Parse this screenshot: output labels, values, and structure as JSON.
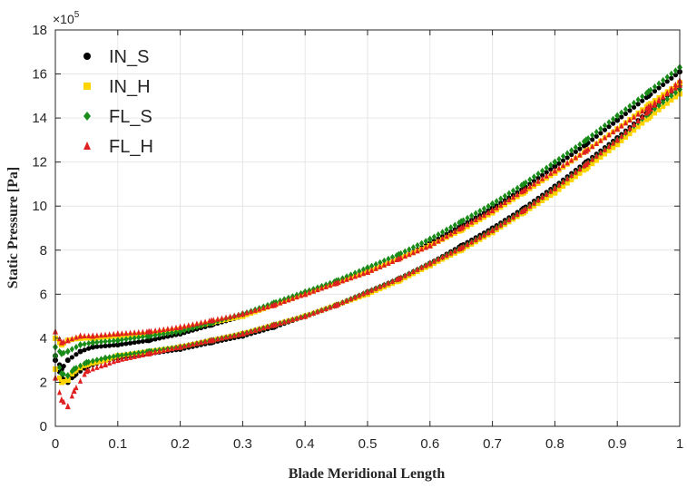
{
  "chart_data": {
    "type": "scatter",
    "title": "",
    "xlabel": "Blade Meridional Length",
    "ylabel": "Static Pressure [Pa]",
    "y_exponent_label": "×10",
    "y_exponent_power": "5",
    "xlim": [
      0,
      1
    ],
    "ylim": [
      0,
      18
    ],
    "y_scale_factor": 100000,
    "x_ticks": [
      0,
      0.1,
      0.2,
      0.3,
      0.4,
      0.5,
      0.6,
      0.7,
      0.8,
      0.9,
      1
    ],
    "x_tick_labels": [
      "0",
      "0.1",
      "0.2",
      "0.3",
      "0.4",
      "0.5",
      "0.6",
      "0.7",
      "0.8",
      "0.9",
      "1"
    ],
    "y_ticks": [
      0,
      2,
      4,
      6,
      8,
      10,
      12,
      14,
      16,
      18
    ],
    "y_tick_labels": [
      "0",
      "2",
      "4",
      "6",
      "8",
      "10",
      "12",
      "14",
      "16",
      "18"
    ],
    "grid": true,
    "legend_position": "top-left",
    "series": [
      {
        "name": "IN_S",
        "color": "#000000",
        "marker": "circle",
        "curves": [
          [
            [
              0.0,
              3.0
            ],
            [
              0.01,
              2.2
            ],
            [
              0.02,
              2.0
            ],
            [
              0.03,
              2.3
            ],
            [
              0.05,
              2.7
            ],
            [
              0.08,
              3.0
            ],
            [
              0.1,
              3.1
            ],
            [
              0.15,
              3.3
            ],
            [
              0.2,
              3.5
            ],
            [
              0.25,
              3.8
            ],
            [
              0.3,
              4.1
            ],
            [
              0.35,
              4.5
            ],
            [
              0.4,
              5.0
            ],
            [
              0.45,
              5.5
            ],
            [
              0.5,
              6.1
            ],
            [
              0.55,
              6.7
            ],
            [
              0.6,
              7.4
            ],
            [
              0.65,
              8.2
            ],
            [
              0.7,
              9.0
            ],
            [
              0.75,
              9.9
            ],
            [
              0.8,
              10.9
            ],
            [
              0.85,
              12.0
            ],
            [
              0.9,
              13.1
            ],
            [
              0.95,
              14.3
            ],
            [
              1.0,
              15.5
            ]
          ],
          [
            [
              0.0,
              3.2
            ],
            [
              0.01,
              2.6
            ],
            [
              0.02,
              3.0
            ],
            [
              0.04,
              3.4
            ],
            [
              0.06,
              3.6
            ],
            [
              0.1,
              3.7
            ],
            [
              0.15,
              3.9
            ],
            [
              0.2,
              4.2
            ],
            [
              0.25,
              4.6
            ],
            [
              0.3,
              5.0
            ],
            [
              0.35,
              5.5
            ],
            [
              0.4,
              6.0
            ],
            [
              0.45,
              6.5
            ],
            [
              0.5,
              7.0
            ],
            [
              0.55,
              7.6
            ],
            [
              0.6,
              8.3
            ],
            [
              0.65,
              9.1
            ],
            [
              0.7,
              9.9
            ],
            [
              0.75,
              10.8
            ],
            [
              0.8,
              11.8
            ],
            [
              0.85,
              12.8
            ],
            [
              0.9,
              13.9
            ],
            [
              0.95,
              15.0
            ],
            [
              1.0,
              16.1
            ]
          ]
        ]
      },
      {
        "name": "IN_H",
        "color": "#ffd400",
        "marker": "square",
        "curves": [
          [
            [
              0.0,
              2.6
            ],
            [
              0.01,
              2.0
            ],
            [
              0.02,
              2.1
            ],
            [
              0.03,
              2.5
            ],
            [
              0.05,
              2.8
            ],
            [
              0.08,
              3.0
            ],
            [
              0.1,
              3.2
            ],
            [
              0.15,
              3.4
            ],
            [
              0.2,
              3.6
            ],
            [
              0.25,
              3.9
            ],
            [
              0.3,
              4.2
            ],
            [
              0.35,
              4.6
            ],
            [
              0.4,
              5.0
            ],
            [
              0.45,
              5.5
            ],
            [
              0.5,
              6.0
            ],
            [
              0.55,
              6.6
            ],
            [
              0.6,
              7.3
            ],
            [
              0.65,
              8.0
            ],
            [
              0.7,
              8.8
            ],
            [
              0.75,
              9.7
            ],
            [
              0.8,
              10.6
            ],
            [
              0.85,
              11.7
            ],
            [
              0.9,
              12.8
            ],
            [
              0.95,
              14.0
            ],
            [
              1.0,
              15.1
            ]
          ],
          [
            [
              0.0,
              4.0
            ],
            [
              0.01,
              3.7
            ],
            [
              0.02,
              3.9
            ],
            [
              0.04,
              4.0
            ],
            [
              0.06,
              4.0
            ],
            [
              0.1,
              4.1
            ],
            [
              0.15,
              4.2
            ],
            [
              0.2,
              4.4
            ],
            [
              0.25,
              4.7
            ],
            [
              0.3,
              5.0
            ],
            [
              0.35,
              5.5
            ],
            [
              0.4,
              6.0
            ],
            [
              0.45,
              6.5
            ],
            [
              0.5,
              7.0
            ],
            [
              0.55,
              7.6
            ],
            [
              0.6,
              8.2
            ],
            [
              0.65,
              8.9
            ],
            [
              0.7,
              9.7
            ],
            [
              0.75,
              10.6
            ],
            [
              0.8,
              11.5
            ],
            [
              0.85,
              12.5
            ],
            [
              0.9,
              13.5
            ],
            [
              0.95,
              14.6
            ],
            [
              1.0,
              15.6
            ]
          ]
        ]
      },
      {
        "name": "FL_S",
        "color": "#1a8c1a",
        "marker": "diamond",
        "curves": [
          [
            [
              0.0,
              3.2
            ],
            [
              0.01,
              2.4
            ],
            [
              0.02,
              2.3
            ],
            [
              0.03,
              2.6
            ],
            [
              0.05,
              2.9
            ],
            [
              0.08,
              3.1
            ],
            [
              0.1,
              3.2
            ],
            [
              0.15,
              3.4
            ],
            [
              0.2,
              3.6
            ],
            [
              0.25,
              3.9
            ],
            [
              0.3,
              4.2
            ],
            [
              0.35,
              4.6
            ],
            [
              0.4,
              5.0
            ],
            [
              0.45,
              5.5
            ],
            [
              0.5,
              6.1
            ],
            [
              0.55,
              6.7
            ],
            [
              0.6,
              7.4
            ],
            [
              0.65,
              8.1
            ],
            [
              0.7,
              8.9
            ],
            [
              0.75,
              9.8
            ],
            [
              0.8,
              10.8
            ],
            [
              0.85,
              11.9
            ],
            [
              0.9,
              13.0
            ],
            [
              0.95,
              14.2
            ],
            [
              1.0,
              15.3
            ]
          ],
          [
            [
              0.0,
              3.6
            ],
            [
              0.01,
              3.3
            ],
            [
              0.02,
              3.4
            ],
            [
              0.04,
              3.7
            ],
            [
              0.06,
              3.8
            ],
            [
              0.1,
              3.9
            ],
            [
              0.15,
              4.1
            ],
            [
              0.2,
              4.3
            ],
            [
              0.25,
              4.7
            ],
            [
              0.3,
              5.1
            ],
            [
              0.35,
              5.6
            ],
            [
              0.4,
              6.1
            ],
            [
              0.45,
              6.6
            ],
            [
              0.5,
              7.2
            ],
            [
              0.55,
              7.8
            ],
            [
              0.6,
              8.5
            ],
            [
              0.65,
              9.3
            ],
            [
              0.7,
              10.1
            ],
            [
              0.75,
              11.0
            ],
            [
              0.8,
              12.0
            ],
            [
              0.85,
              13.0
            ],
            [
              0.9,
              14.1
            ],
            [
              0.95,
              15.2
            ],
            [
              1.0,
              16.3
            ]
          ]
        ]
      },
      {
        "name": "FL_H",
        "color": "#e02020",
        "marker": "triangle",
        "curves": [
          [
            [
              0.0,
              2.2
            ],
            [
              0.01,
              1.2
            ],
            [
              0.02,
              0.9
            ],
            [
              0.03,
              1.6
            ],
            [
              0.05,
              2.5
            ],
            [
              0.08,
              2.8
            ],
            [
              0.1,
              3.0
            ],
            [
              0.15,
              3.3
            ],
            [
              0.2,
              3.6
            ],
            [
              0.25,
              3.9
            ],
            [
              0.3,
              4.2
            ],
            [
              0.35,
              4.6
            ],
            [
              0.4,
              5.0
            ],
            [
              0.45,
              5.5
            ],
            [
              0.5,
              6.1
            ],
            [
              0.55,
              6.7
            ],
            [
              0.6,
              7.4
            ],
            [
              0.65,
              8.1
            ],
            [
              0.7,
              8.9
            ],
            [
              0.75,
              9.8
            ],
            [
              0.8,
              10.8
            ],
            [
              0.85,
              11.9
            ],
            [
              0.9,
              13.0
            ],
            [
              0.95,
              14.3
            ],
            [
              1.0,
              15.7
            ]
          ],
          [
            [
              0.0,
              4.3
            ],
            [
              0.01,
              3.8
            ],
            [
              0.02,
              3.9
            ],
            [
              0.04,
              4.1
            ],
            [
              0.06,
              4.1
            ],
            [
              0.1,
              4.2
            ],
            [
              0.15,
              4.3
            ],
            [
              0.2,
              4.5
            ],
            [
              0.25,
              4.8
            ],
            [
              0.3,
              5.1
            ],
            [
              0.35,
              5.5
            ],
            [
              0.4,
              6.0
            ],
            [
              0.45,
              6.5
            ],
            [
              0.5,
              7.0
            ],
            [
              0.55,
              7.6
            ],
            [
              0.6,
              8.2
            ],
            [
              0.65,
              9.0
            ],
            [
              0.7,
              9.8
            ],
            [
              0.75,
              10.7
            ],
            [
              0.8,
              11.6
            ],
            [
              0.85,
              12.5
            ],
            [
              0.9,
              13.5
            ],
            [
              0.95,
              14.5
            ],
            [
              1.0,
              15.5
            ]
          ]
        ]
      }
    ]
  }
}
